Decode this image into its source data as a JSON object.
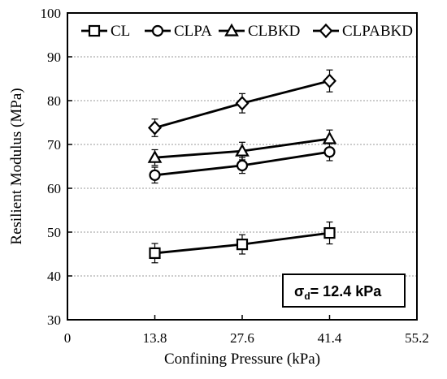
{
  "chart_data": {
    "type": "line",
    "xlabel": "Confining Pressure (kPa)",
    "ylabel": "Resilient Modulus (MPa)",
    "xlim": [
      0,
      55.2
    ],
    "ylim": [
      30,
      100
    ],
    "x_ticks": [
      "0",
      "13.8",
      "27.6",
      "41.4",
      "55.2"
    ],
    "y_ticks": [
      "30",
      "40",
      "50",
      "60",
      "70",
      "80",
      "90",
      "100"
    ],
    "grid": "horizontal dotted",
    "legend_position": "top",
    "annotation": {
      "sigma": "σ",
      "sub": "d",
      "rest": "= 12.4 kPa"
    },
    "x": [
      13.8,
      27.6,
      41.4
    ],
    "series": [
      {
        "name": "CL",
        "marker": "square",
        "values": [
          45.2,
          47.2,
          49.8
        ],
        "errors": [
          2.2,
          2.2,
          2.5
        ]
      },
      {
        "name": "CLPA",
        "marker": "circle",
        "values": [
          63.0,
          65.2,
          68.3
        ],
        "errors": [
          1.8,
          1.8,
          2.0
        ]
      },
      {
        "name": "CLBKD",
        "marker": "triangle",
        "values": [
          67.0,
          68.5,
          71.3
        ],
        "errors": [
          1.8,
          2.0,
          2.0
        ]
      },
      {
        "name": "CLPABKD",
        "marker": "diamond",
        "values": [
          73.8,
          79.4,
          84.5
        ],
        "errors": [
          2.0,
          2.2,
          2.5
        ]
      }
    ]
  }
}
